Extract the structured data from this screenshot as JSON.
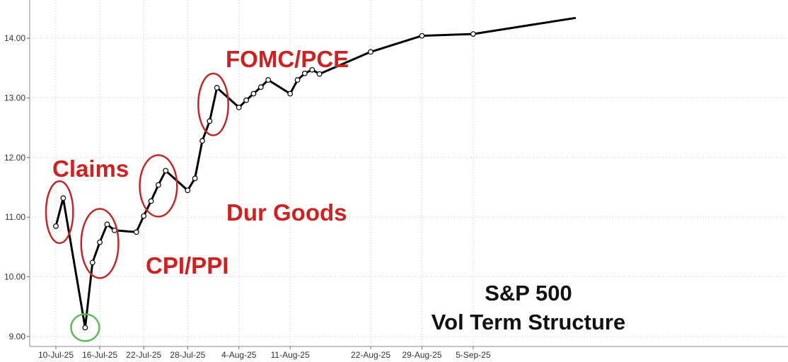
{
  "chart_data": {
    "type": "line",
    "title": [
      "S&P 500",
      "Vol Term Structure"
    ],
    "xlabel": "",
    "ylabel": "",
    "ylim": [
      8.9,
      14.5
    ],
    "yticks": [
      "9.00",
      "10.00",
      "11.00",
      "12.00",
      "13.00",
      "14.00"
    ],
    "xticks": [
      "10-Jul-25",
      "16-Jul-25",
      "22-Jul-25",
      "28-Jul-25",
      "4-Aug-25",
      "11-Aug-25",
      "22-Aug-25",
      "29-Aug-25",
      "5-Sep-25"
    ],
    "grid": true,
    "series": [
      {
        "color": "#000000",
        "points": [
          [
            "2025-07-10",
            10.85
          ],
          [
            "2025-07-11",
            11.32
          ],
          [
            "2025-07-14",
            9.15
          ],
          [
            "2025-07-15",
            10.24
          ],
          [
            "2025-07-16",
            10.58
          ],
          [
            "2025-07-17",
            10.88
          ],
          [
            "2025-07-18",
            10.78
          ],
          [
            "2025-07-21",
            10.75
          ],
          [
            "2025-07-22",
            11.02
          ],
          [
            "2025-07-23",
            11.27
          ],
          [
            "2025-07-24",
            11.54
          ],
          [
            "2025-07-25",
            11.78
          ],
          [
            "2025-07-28",
            11.45
          ],
          [
            "2025-07-29",
            11.65
          ],
          [
            "2025-07-30",
            12.28
          ],
          [
            "2025-07-31",
            12.61
          ],
          [
            "2025-08-01",
            13.17
          ],
          [
            "2025-08-04",
            12.84
          ],
          [
            "2025-08-05",
            12.96
          ],
          [
            "2025-08-06",
            13.07
          ],
          [
            "2025-08-07",
            13.18
          ],
          [
            "2025-08-08",
            13.3
          ],
          [
            "2025-08-11",
            13.07
          ],
          [
            "2025-08-12",
            13.3
          ],
          [
            "2025-08-13",
            13.41
          ],
          [
            "2025-08-14",
            13.47
          ],
          [
            "2025-08-15",
            13.4
          ],
          [
            "2025-08-22",
            13.77
          ],
          [
            "2025-08-29",
            14.04
          ],
          [
            "2025-09-05",
            14.07
          ],
          [
            "2025-09-19",
            14.34
          ]
        ]
      }
    ],
    "annotations": [
      {
        "text": "Claims",
        "color": "#cc2222"
      },
      {
        "text": "CPI/PPI",
        "color": "#cc2222"
      },
      {
        "text": "Dur Goods",
        "color": "#cc2222"
      },
      {
        "text": "FOMC/PCE",
        "color": "#cc2222"
      }
    ],
    "highlight_colors": {
      "events": "#c0282a",
      "low": "#5cb85c"
    }
  }
}
